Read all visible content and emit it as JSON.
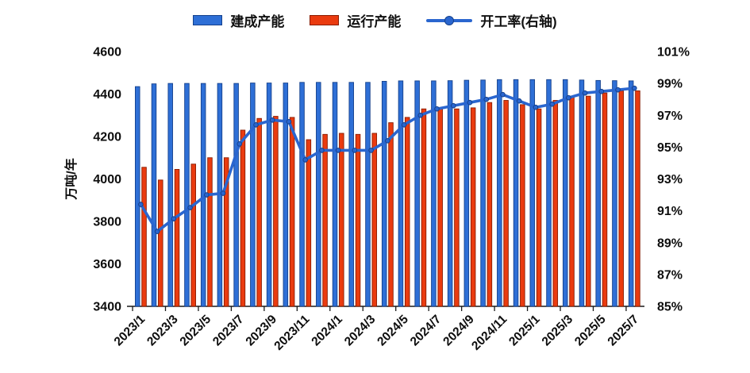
{
  "legend": {
    "built_label": "建成产能",
    "running_label": "运行产能",
    "rate_label": "开工率(右轴)"
  },
  "y_axis_left": {
    "title": "万吨/年",
    "ticks": [
      "4600",
      "4400",
      "4200",
      "4000",
      "3800",
      "3600",
      "3400"
    ]
  },
  "y_axis_right": {
    "ticks": [
      "101%",
      "99%",
      "97%",
      "95%",
      "93%",
      "91%",
      "89%",
      "87%",
      "85%"
    ]
  },
  "chart_data": {
    "type": "bar",
    "subtype": "bar-line-combo",
    "title": "",
    "grid": false,
    "legend_position": "top",
    "x": [
      "2023/1",
      "2023/2",
      "2023/3",
      "2023/4",
      "2023/5",
      "2023/6",
      "2023/7",
      "2023/8",
      "2023/9",
      "2023/10",
      "2023/11",
      "2023/12",
      "2024/1",
      "2024/2",
      "2024/3",
      "2024/4",
      "2024/5",
      "2024/6",
      "2024/7",
      "2024/8",
      "2024/9",
      "2024/10",
      "2024/11",
      "2024/12",
      "2025/1",
      "2025/2",
      "2025/3",
      "2025/4",
      "2025/5",
      "2025/6",
      "2025/7"
    ],
    "x_tick_labels": [
      "2023/1",
      "2023/3",
      "2023/5",
      "2023/7",
      "2023/9",
      "2023/11",
      "2024/1",
      "2024/3",
      "2024/5",
      "2024/7",
      "2024/9",
      "2024/11",
      "2025/1",
      "2025/3",
      "2025/5",
      "2025/7"
    ],
    "left_axis": {
      "label": "万吨/年",
      "min": 3400,
      "max": 4600,
      "step": 200
    },
    "right_axis": {
      "min": 85,
      "max": 101,
      "step": 2,
      "format": "percent"
    },
    "series": [
      {
        "name": "建成产能",
        "type": "bar",
        "axis": "left",
        "color": "#2e6fd6",
        "edge": "#15418c",
        "values": [
          4435,
          4448,
          4450,
          4450,
          4450,
          4450,
          4450,
          4452,
          4452,
          4452,
          4455,
          4455,
          4455,
          4455,
          4455,
          4460,
          4462,
          4462,
          4462,
          4463,
          4465,
          4466,
          4468,
          4468,
          4468,
          4468,
          4468,
          4466,
          4464,
          4463,
          4462
        ]
      },
      {
        "name": "运行产能",
        "type": "bar",
        "axis": "left",
        "color": "#ea3b0f",
        "edge": "#8a1c00",
        "values": [
          4055,
          3995,
          4045,
          4070,
          4100,
          4100,
          4230,
          4285,
          4295,
          4290,
          4185,
          4210,
          4215,
          4210,
          4215,
          4265,
          4290,
          4330,
          4330,
          4330,
          4335,
          4360,
          4370,
          4350,
          4330,
          4370,
          4390,
          4390,
          4405,
          4415,
          4415
        ]
      },
      {
        "name": "开工率(右轴)",
        "type": "line",
        "axis": "right",
        "color": "#2a66cf",
        "marker_edge": "#15418c",
        "values": [
          91.4,
          89.7,
          90.5,
          91.2,
          92.0,
          92.1,
          95.2,
          96.4,
          96.7,
          96.6,
          94.2,
          94.8,
          94.8,
          94.8,
          94.8,
          95.4,
          96.4,
          97.0,
          97.4,
          97.6,
          97.8,
          98.0,
          98.3,
          97.9,
          97.5,
          97.7,
          98.1,
          98.4,
          98.5,
          98.6,
          98.7
        ]
      }
    ]
  }
}
